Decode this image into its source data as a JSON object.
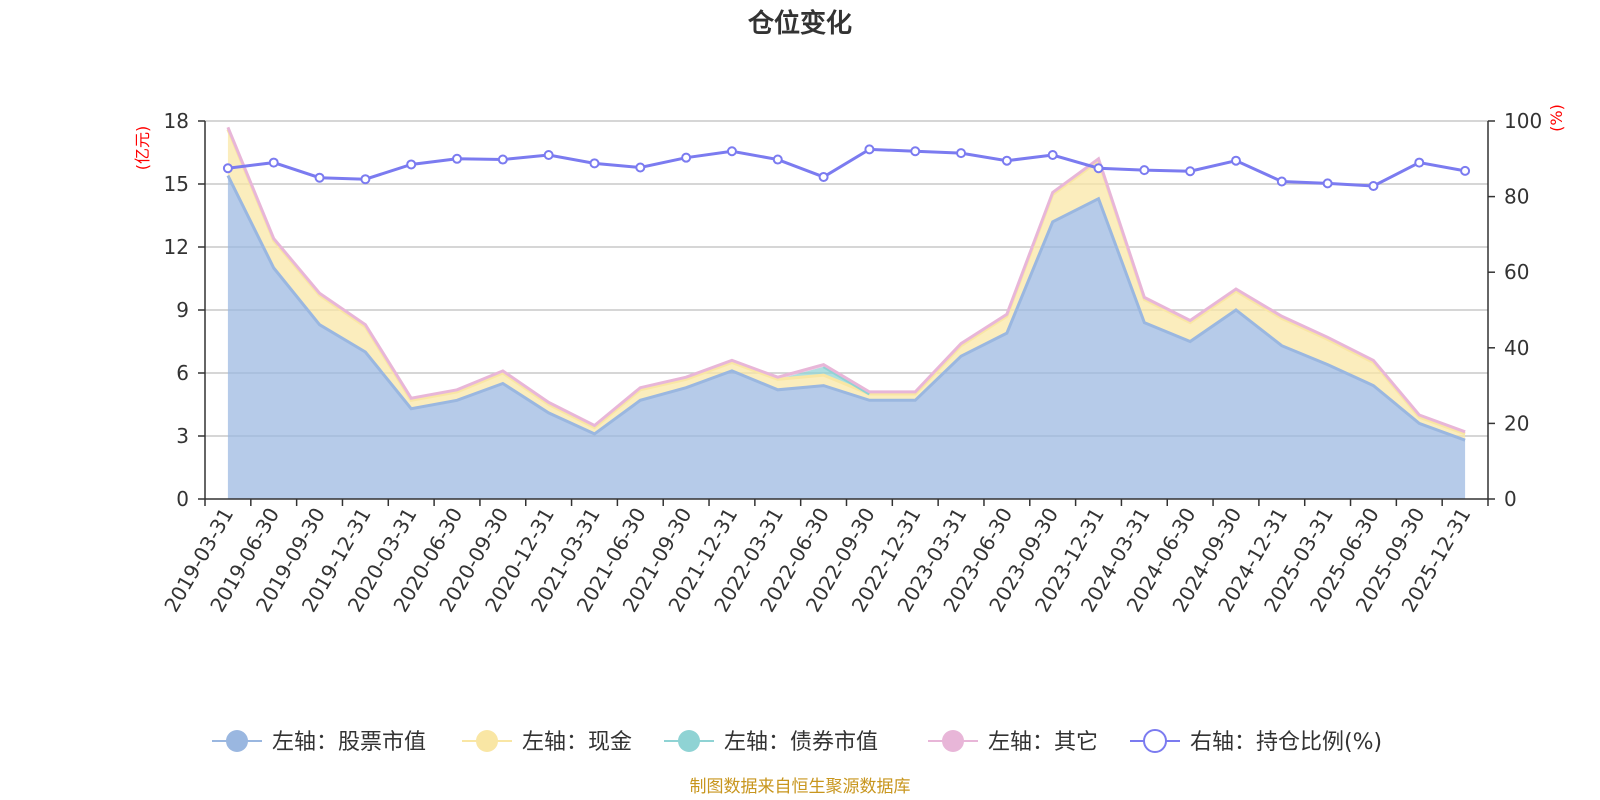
{
  "title": "仓位变化",
  "left_unit": "(亿元)",
  "right_unit": "(%)",
  "source": "制图数据来自恒生聚源数据库",
  "chart_data": {
    "type": "area",
    "title": "仓位变化",
    "x": [
      "2019-03-31",
      "2019-06-30",
      "2019-09-30",
      "2019-12-31",
      "2020-03-31",
      "2020-06-30",
      "2020-09-30",
      "2020-12-31",
      "2021-03-31",
      "2021-06-30",
      "2021-09-30",
      "2021-12-31",
      "2022-03-31",
      "2022-06-30",
      "2022-09-30",
      "2022-12-31",
      "2023-03-31",
      "2023-06-30",
      "2023-09-30",
      "2023-12-31",
      "2024-03-31",
      "2024-06-30",
      "2024-09-30",
      "2024-12-31",
      "2025-03-31",
      "2025-06-30",
      "2025-09-30",
      "2025-12-31"
    ],
    "left_axis": {
      "unit": "(亿元)",
      "range": [
        0,
        18
      ],
      "ticks": [
        0,
        3,
        6,
        9,
        12,
        15,
        18
      ]
    },
    "right_axis": {
      "unit": "(%)",
      "range": [
        0,
        100
      ],
      "ticks": [
        0,
        20,
        40,
        60,
        80,
        100
      ]
    },
    "grid": true,
    "legend_position": "bottom",
    "series": [
      {
        "name": "左轴：股票市值",
        "axis": "left",
        "stacked": true,
        "color": "#9ab7e0",
        "values": [
          15.4,
          11.0,
          8.3,
          7.0,
          4.3,
          4.7,
          5.5,
          4.1,
          3.1,
          4.7,
          5.3,
          6.1,
          5.2,
          5.4,
          4.7,
          4.7,
          6.8,
          7.9,
          13.2,
          14.3,
          8.4,
          7.5,
          9.0,
          7.3,
          6.4,
          5.4,
          3.6,
          2.8
        ]
      },
      {
        "name": "左轴：现金",
        "axis": "left",
        "stacked": true,
        "color": "#f9e6a4",
        "values": [
          2.2,
          1.3,
          1.4,
          1.2,
          0.4,
          0.4,
          0.5,
          0.4,
          0.3,
          0.5,
          0.4,
          0.4,
          0.5,
          0.5,
          0.3,
          0.3,
          0.5,
          0.8,
          1.3,
          1.8,
          1.1,
          0.9,
          0.9,
          1.3,
          1.2,
          1.1,
          0.3,
          0.3
        ]
      },
      {
        "name": "左轴：债券市值",
        "axis": "left",
        "stacked": true,
        "color": "#8fd3d4",
        "values": [
          0,
          0,
          0,
          0,
          0,
          0,
          0,
          0,
          0,
          0,
          0,
          0,
          0,
          0.4,
          0,
          0,
          0,
          0,
          0,
          0,
          0,
          0,
          0,
          0,
          0,
          0,
          0,
          0
        ]
      },
      {
        "name": "左轴：其它",
        "axis": "left",
        "stacked": true,
        "color": "#e8b6d8",
        "values": [
          0.1,
          0.1,
          0.1,
          0.1,
          0.1,
          0.1,
          0.1,
          0.1,
          0.1,
          0.1,
          0.1,
          0.1,
          0.1,
          0.1,
          0.1,
          0.1,
          0.1,
          0.1,
          0.1,
          0.1,
          0.1,
          0.1,
          0.1,
          0.1,
          0.1,
          0.1,
          0.1,
          0.1
        ]
      },
      {
        "name": "右轴：持仓比例(%)",
        "axis": "right",
        "type": "line",
        "color": "#7b7bf0",
        "values": [
          87.5,
          89.0,
          85.0,
          84.6,
          88.5,
          90.0,
          89.8,
          91.0,
          88.8,
          87.7,
          90.3,
          92.0,
          89.8,
          85.2,
          92.5,
          92.0,
          91.5,
          89.5,
          91.0,
          87.5,
          87.0,
          86.7,
          89.5,
          84.0,
          83.5,
          82.8,
          89.0,
          86.8
        ]
      }
    ]
  }
}
